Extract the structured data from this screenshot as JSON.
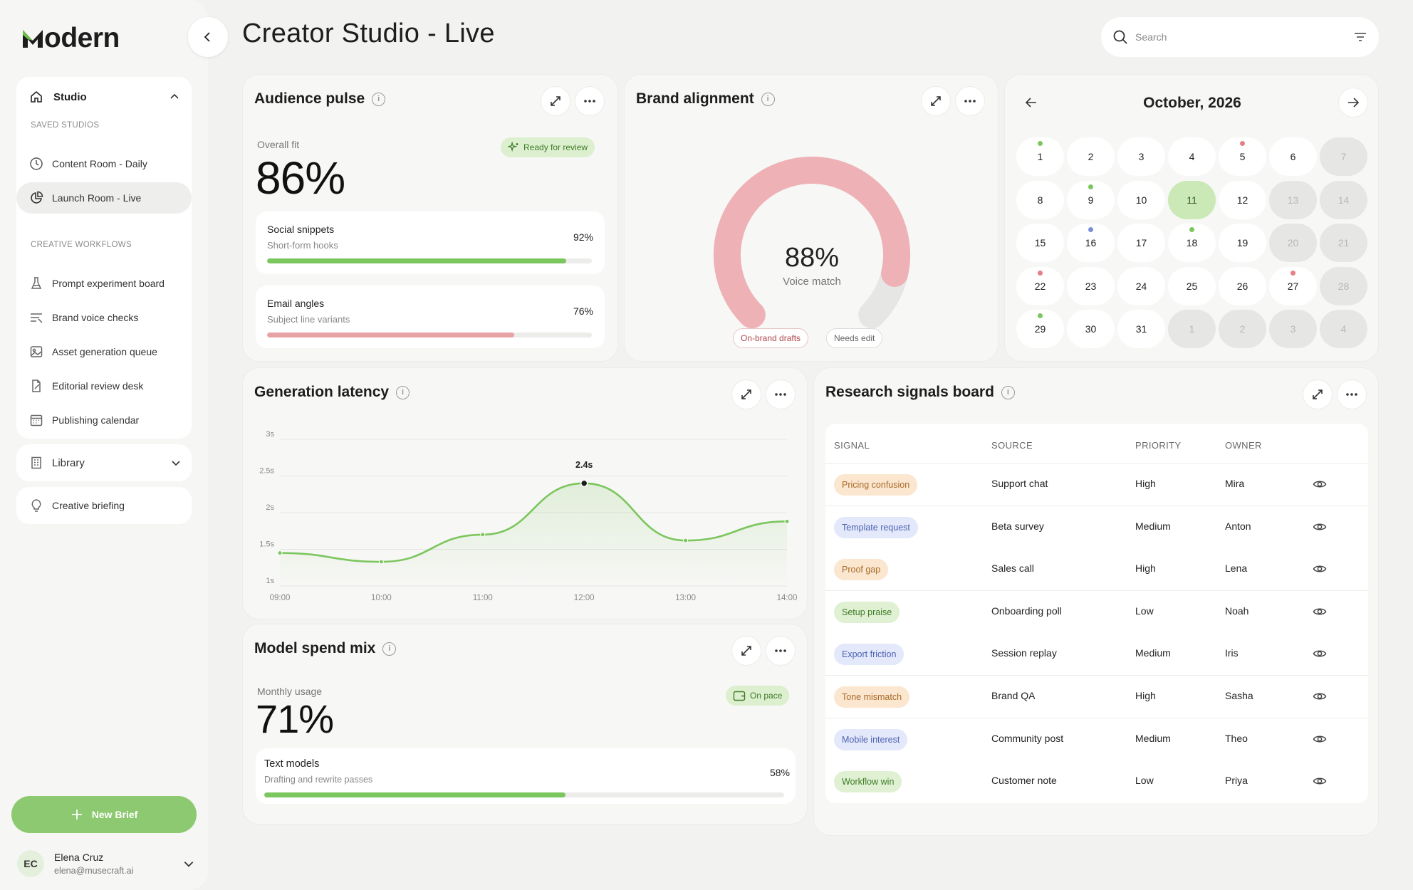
{
  "app": {
    "logo": "odern",
    "logo_initial": "M",
    "page_title": "Creator Studio - Live"
  },
  "search": {
    "placeholder": "Search"
  },
  "sidebar": {
    "studio_label": "Studio",
    "saved_section": "SAVED STUDIOS",
    "saved": [
      {
        "label": "Content Room - Daily",
        "icon": "clock-icon"
      },
      {
        "label": "Launch Room - Live",
        "icon": "pie-chart-icon",
        "active": true
      }
    ],
    "workflows_section": "CREATIVE WORKFLOWS",
    "workflows": [
      {
        "label": "Prompt experiment board",
        "icon": "flask-icon"
      },
      {
        "label": "Brand voice checks",
        "icon": "filter-lines-icon"
      },
      {
        "label": "Asset generation queue",
        "icon": "image-icon"
      },
      {
        "label": "Editorial review desk",
        "icon": "document-edit-icon"
      },
      {
        "label": "Publishing calendar",
        "icon": "calendar-icon"
      }
    ],
    "library_label": "Library",
    "briefing_label": "Creative briefing",
    "new_brief_label": "New Brief",
    "user": {
      "initials": "EC",
      "name": "Elena Cruz",
      "email": "elena@musecraft.ai"
    }
  },
  "audience": {
    "title": "Audience pulse",
    "overall_label": "Overall fit",
    "overall_value": "86%",
    "badge": "Ready for review",
    "items": [
      {
        "title": "Social snippets",
        "subtitle": "Short-form hooks",
        "value": "92%",
        "fill": 0.92,
        "color": "#7cc65e"
      },
      {
        "title": "Email angles",
        "subtitle": "Subject line variants",
        "value": "76%",
        "fill": 0.76,
        "color": "#e8a2a6"
      }
    ]
  },
  "brand": {
    "title": "Brand alignment",
    "value": "88%",
    "value_label": "Voice match",
    "gauge_fill": 0.88,
    "tag_on": "On-brand drafts",
    "tag_needs": "Needs edit"
  },
  "calendar": {
    "month": "October, 2026",
    "days": [
      {
        "d": "1",
        "type": "day",
        "dot": "#7cc65e"
      },
      {
        "d": "2",
        "type": "day"
      },
      {
        "d": "3",
        "type": "day"
      },
      {
        "d": "4",
        "type": "day"
      },
      {
        "d": "5",
        "type": "day",
        "dot": "#e57f86"
      },
      {
        "d": "6",
        "type": "day"
      },
      {
        "d": "7",
        "type": "weekend"
      },
      {
        "d": "8",
        "type": "day"
      },
      {
        "d": "9",
        "type": "day",
        "dot": "#7cc65e"
      },
      {
        "d": "10",
        "type": "day"
      },
      {
        "d": "11",
        "type": "today"
      },
      {
        "d": "12",
        "type": "day"
      },
      {
        "d": "13",
        "type": "weekend"
      },
      {
        "d": "14",
        "type": "weekend"
      },
      {
        "d": "15",
        "type": "day"
      },
      {
        "d": "16",
        "type": "day",
        "dot": "#7a90d6"
      },
      {
        "d": "17",
        "type": "day"
      },
      {
        "d": "18",
        "type": "day",
        "dot": "#7cc65e"
      },
      {
        "d": "19",
        "type": "day"
      },
      {
        "d": "20",
        "type": "weekend"
      },
      {
        "d": "21",
        "type": "weekend"
      },
      {
        "d": "22",
        "type": "day",
        "dot": "#e57f86"
      },
      {
        "d": "23",
        "type": "day"
      },
      {
        "d": "24",
        "type": "day"
      },
      {
        "d": "25",
        "type": "day"
      },
      {
        "d": "26",
        "type": "day"
      },
      {
        "d": "27",
        "type": "day",
        "dot": "#e57f86"
      },
      {
        "d": "28",
        "type": "weekend"
      },
      {
        "d": "29",
        "type": "day",
        "dot": "#7cc65e"
      },
      {
        "d": "30",
        "type": "day"
      },
      {
        "d": "31",
        "type": "day"
      },
      {
        "d": "1",
        "type": "other"
      },
      {
        "d": "2",
        "type": "other"
      },
      {
        "d": "3",
        "type": "other"
      },
      {
        "d": "4",
        "type": "other"
      }
    ]
  },
  "latency": {
    "title": "Generation latency",
    "peak_label": "2.4s"
  },
  "chart_data": {
    "type": "line",
    "title": "Generation latency",
    "x": [
      "09:00",
      "10:00",
      "11:00",
      "12:00",
      "13:00",
      "14:00"
    ],
    "y_ticks": [
      "1s",
      "1.5s",
      "2s",
      "2.5s",
      "3s"
    ],
    "ylim": [
      1,
      3
    ],
    "series": [
      {
        "values": [
          1.45,
          1.33,
          1.7,
          2.4,
          1.62,
          1.88
        ]
      }
    ],
    "annotation": {
      "x": "12:00",
      "label": "2.4s"
    },
    "color": "#7cc65e",
    "grid": true
  },
  "spend": {
    "title": "Model spend mix",
    "usage_label": "Monthly usage",
    "usage_value": "71%",
    "badge": "On pace",
    "items": [
      {
        "title": "Text models",
        "subtitle": "Drafting and rewrite passes",
        "value": "58%",
        "fill": 0.58,
        "color": "#7cc65e"
      }
    ]
  },
  "signals": {
    "title": "Research signals board",
    "headers": [
      "SIGNAL",
      "SOURCE",
      "PRIORITY",
      "OWNER"
    ],
    "rows": [
      {
        "signal": "Pricing confusion",
        "tone": "orange",
        "source": "Support chat",
        "priority": "High",
        "owner": "Mira"
      },
      {
        "signal": "Template request",
        "tone": "blue",
        "source": "Beta survey",
        "priority": "Medium",
        "owner": "Anton"
      },
      {
        "signal": "Proof gap",
        "tone": "orange",
        "source": "Sales call",
        "priority": "High",
        "owner": "Lena"
      },
      {
        "signal": "Setup praise",
        "tone": "green",
        "source": "Onboarding poll",
        "priority": "Low",
        "owner": "Noah"
      },
      {
        "signal": "Export friction",
        "tone": "blue",
        "source": "Session replay",
        "priority": "Medium",
        "owner": "Iris"
      },
      {
        "signal": "Tone mismatch",
        "tone": "orange",
        "source": "Brand QA",
        "priority": "High",
        "owner": "Sasha"
      },
      {
        "signal": "Mobile interest",
        "tone": "blue",
        "source": "Community post",
        "priority": "Medium",
        "owner": "Theo"
      },
      {
        "signal": "Workflow win",
        "tone": "green",
        "source": "Customer note",
        "priority": "Low",
        "owner": "Priya"
      }
    ]
  },
  "colors": {
    "accent": "#7cc65e",
    "pink": "#e8a2a6",
    "orange_bg": "#fbe6cf",
    "orange_fg": "#a86a2a",
    "blue_bg": "#e3e8fb",
    "blue_fg": "#4d63b0",
    "green_bg": "#dff1d2",
    "green_fg": "#3f7a28"
  }
}
